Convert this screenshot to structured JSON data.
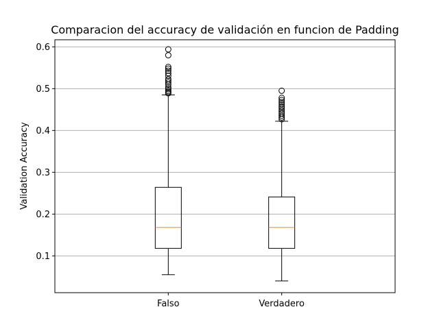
{
  "chart_data": {
    "type": "box",
    "title": "Comparacion del accuracy de validación en funcion de Padding",
    "xlabel": "",
    "ylabel": "Validation Accuracy",
    "categories": [
      "Falso",
      "Verdadero"
    ],
    "ylim": [
      0.012,
      0.617
    ],
    "yticks": [
      0.1,
      0.2,
      0.3,
      0.4,
      0.5,
      0.6
    ],
    "ytick_labels": [
      "0.1",
      "0.2",
      "0.3",
      "0.4",
      "0.5",
      "0.6"
    ],
    "grid": "y",
    "colors": {
      "median": "#ff7f0e",
      "box": "#000000",
      "grid": "#b0b0b0"
    },
    "boxes": [
      {
        "name": "Falso",
        "whisker_low": 0.055,
        "q1": 0.118,
        "median": 0.168,
        "q3": 0.264,
        "whisker_high": 0.485,
        "fliers": [
          0.489,
          0.492,
          0.495,
          0.499,
          0.503,
          0.51,
          0.515,
          0.519,
          0.523,
          0.531,
          0.537,
          0.543,
          0.548,
          0.552,
          0.58,
          0.594
        ]
      },
      {
        "name": "Verdadero",
        "whisker_low": 0.04,
        "q1": 0.118,
        "median": 0.168,
        "q3": 0.241,
        "whisker_high": 0.422,
        "fliers": [
          0.427,
          0.431,
          0.435,
          0.44,
          0.444,
          0.449,
          0.454,
          0.458,
          0.463,
          0.468,
          0.473,
          0.478,
          0.495
        ]
      }
    ]
  }
}
